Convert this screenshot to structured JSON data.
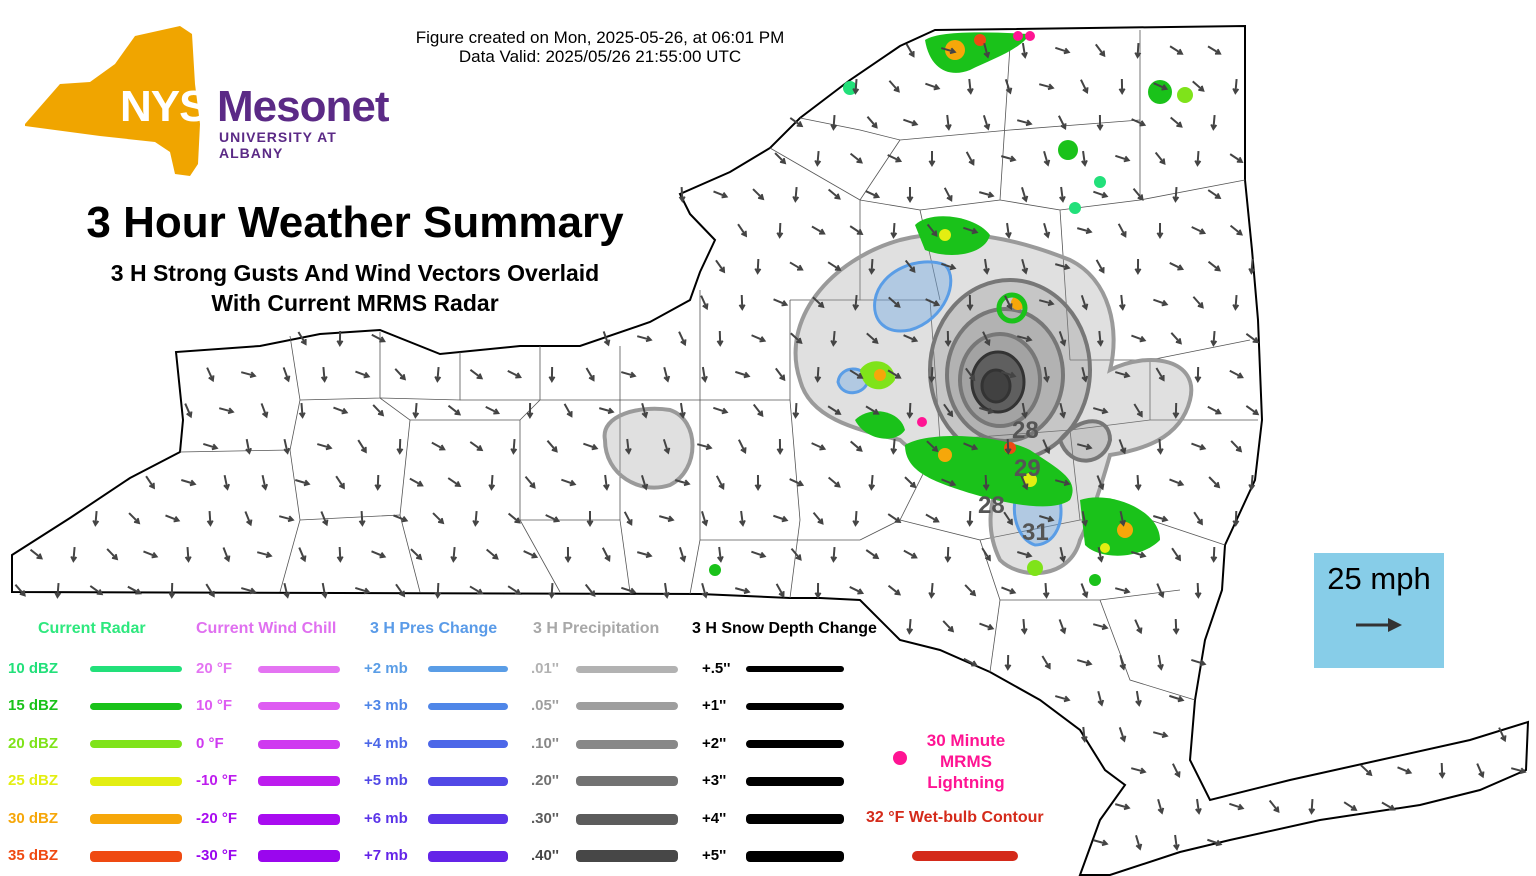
{
  "header": {
    "created": "Figure created on Mon, 2025-05-26, at 06:01 PM",
    "valid": "Data Valid: 2025/05/26 21:55:00 UTC"
  },
  "logo": {
    "brand_left": "NYS",
    "brand_right": "Mesonet",
    "org": "UNIVERSITY AT ALBANY"
  },
  "title": "3 Hour Weather Summary",
  "subtitle_line1": "3 H Strong Gusts And Wind Vectors Overlaid",
  "subtitle_line2": "With Current MRMS Radar",
  "scale": {
    "label": "25 mph",
    "icon": "arrow-right-icon"
  },
  "map_labels": [
    "28",
    "29",
    "28",
    "31"
  ],
  "legend": {
    "radar": {
      "title": "Current Radar",
      "color": "#2ee87e",
      "items": [
        {
          "label": "10 dBZ",
          "color": "#22e07a"
        },
        {
          "label": "15 dBZ",
          "color": "#1ac21a"
        },
        {
          "label": "20 dBZ",
          "color": "#7fe31a"
        },
        {
          "label": "25 dBZ",
          "color": "#e3ee12"
        },
        {
          "label": "30 dBZ",
          "color": "#f6a70a"
        },
        {
          "label": "35 dBZ",
          "color": "#ef4a12"
        }
      ]
    },
    "windchill": {
      "title": "Current Wind Chill",
      "color": "#e070f0",
      "items": [
        {
          "label": "20 °F",
          "color": "#e474f2"
        },
        {
          "label": "10 °F",
          "color": "#de5cf2"
        },
        {
          "label": "0 °F",
          "color": "#cf3af0"
        },
        {
          "label": "-10 °F",
          "color": "#bd1cee"
        },
        {
          "label": "-20 °F",
          "color": "#a90cf0"
        },
        {
          "label": "-30 °F",
          "color": "#9a06ee"
        }
      ]
    },
    "pressure": {
      "title": "3 H Pres Change",
      "color": "#5a9be8",
      "items": [
        {
          "label": "+2 mb",
          "color": "#5a9de6"
        },
        {
          "label": "+3 mb",
          "color": "#4f86e8"
        },
        {
          "label": "+4 mb",
          "color": "#4c67e8"
        },
        {
          "label": "+5 mb",
          "color": "#5148e6"
        },
        {
          "label": "+6 mb",
          "color": "#5a34e8"
        },
        {
          "label": "+7 mb",
          "color": "#6424e8"
        }
      ]
    },
    "precip": {
      "title": "3 H Precipitation",
      "color": "#a8a8a8",
      "items": [
        {
          "label": ".01''",
          "color": "#b2b2b2"
        },
        {
          "label": ".05''",
          "color": "#9e9e9e"
        },
        {
          "label": ".10''",
          "color": "#888888"
        },
        {
          "label": ".20''",
          "color": "#727272"
        },
        {
          "label": ".30''",
          "color": "#5c5c5c"
        },
        {
          "label": ".40''",
          "color": "#474747"
        }
      ]
    },
    "snow": {
      "title": "3 H Snow Depth Change",
      "color": "#000000",
      "items": [
        {
          "label": "+.5''",
          "color": "#000000"
        },
        {
          "label": "+1''",
          "color": "#000000"
        },
        {
          "label": "+2''",
          "color": "#000000"
        },
        {
          "label": "+3''",
          "color": "#000000"
        },
        {
          "label": "+4''",
          "color": "#000000"
        },
        {
          "label": "+5''",
          "color": "#000000"
        }
      ]
    },
    "lightning": {
      "line1": "30 Minute",
      "line2": "MRMS",
      "line3": "Lightning",
      "color": "#ff1493"
    },
    "wetbulb": {
      "label": "32 °F Wet-bulb Contour",
      "color": "#d42a1a"
    }
  }
}
